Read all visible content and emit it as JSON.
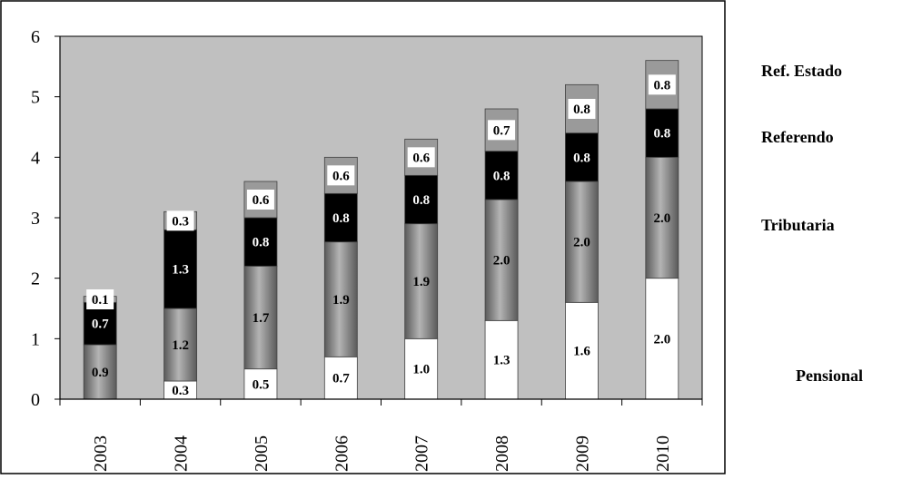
{
  "chart_data": {
    "type": "bar",
    "stacked": true,
    "categories": [
      "2003",
      "2004",
      "2005",
      "2006",
      "2007",
      "2008",
      "2009",
      "2010"
    ],
    "series": [
      {
        "name": "Pensional",
        "values": [
          0.0,
          0.3,
          0.5,
          0.7,
          1.0,
          1.3,
          1.6,
          2.0
        ]
      },
      {
        "name": "Tributaria",
        "values": [
          0.9,
          1.2,
          1.7,
          1.9,
          1.9,
          2.0,
          2.0,
          2.0
        ]
      },
      {
        "name": "Referendo",
        "values": [
          0.7,
          1.3,
          0.8,
          0.8,
          0.8,
          0.8,
          0.8,
          0.8
        ]
      },
      {
        "name": "Ref. Estado",
        "values": [
          0.1,
          0.3,
          0.6,
          0.6,
          0.6,
          0.7,
          0.8,
          0.8
        ]
      }
    ],
    "y_ticks": [
      "0",
      "1",
      "2",
      "3",
      "4",
      "5",
      "6"
    ],
    "ylim": [
      0,
      6
    ],
    "grid": false,
    "legend_position": "right",
    "colors": {
      "plot_background": "#c0c0c0",
      "Pensional": "#ffffff",
      "Tributaria": "#8a8a8a",
      "Referendo": "#000000",
      "Ref. Estado": "#9a9a9a"
    }
  }
}
